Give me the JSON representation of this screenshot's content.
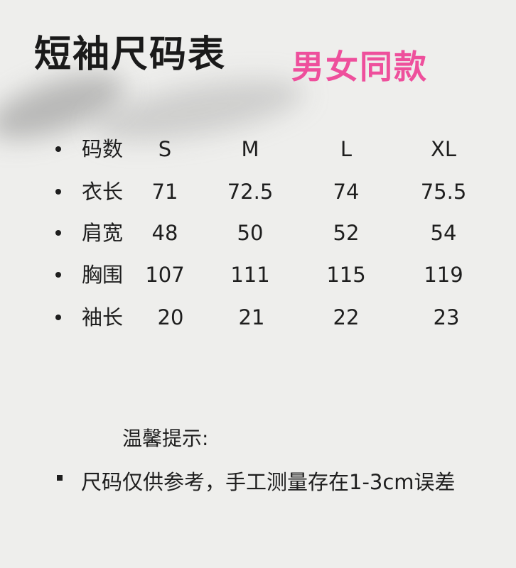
{
  "title": "短袖尺码表",
  "badge": {
    "text": "男女同款",
    "color": "#ee4f9c"
  },
  "table": {
    "header": {
      "label": "码数",
      "sizes": [
        "S",
        "M",
        "L",
        "XL"
      ]
    },
    "rows": [
      {
        "label": "衣长",
        "values": [
          "71",
          "72.5",
          "74",
          "75.5"
        ]
      },
      {
        "label": "肩宽",
        "values": [
          "48",
          "50",
          "52",
          "54"
        ]
      },
      {
        "label": "胸围",
        "values": [
          "107",
          "111",
          "115",
          "119"
        ]
      },
      {
        "label": "袖长",
        "values": [
          "20",
          "21",
          "22",
          "23"
        ]
      }
    ]
  },
  "tip": {
    "title": "温馨提示:",
    "text": "尺码仅供参考，手工测量存在1-3cm误差"
  }
}
